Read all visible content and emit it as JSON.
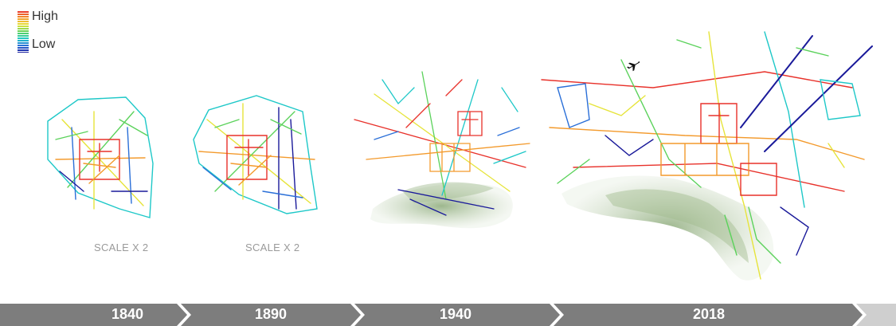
{
  "legend": {
    "high_label": "High",
    "low_label": "Low"
  },
  "colors": {
    "high": "#e8312a",
    "mid_high": "#f39a2c",
    "mid": "#e6e43a",
    "mid_low": "#1ec8c8",
    "low": "#1a1a9a",
    "timeline": "#7d7d7d",
    "timeline_end": "#cfcfcf",
    "terrain": "#8aab74"
  },
  "maps": [
    {
      "year": "1840",
      "scale_note": "SCALE X 2"
    },
    {
      "year": "1890",
      "scale_note": "SCALE X 2"
    },
    {
      "year": "1940",
      "scale_note": ""
    },
    {
      "year": "2018",
      "scale_note": ""
    }
  ],
  "icons": {
    "airport": "airplane-icon"
  }
}
